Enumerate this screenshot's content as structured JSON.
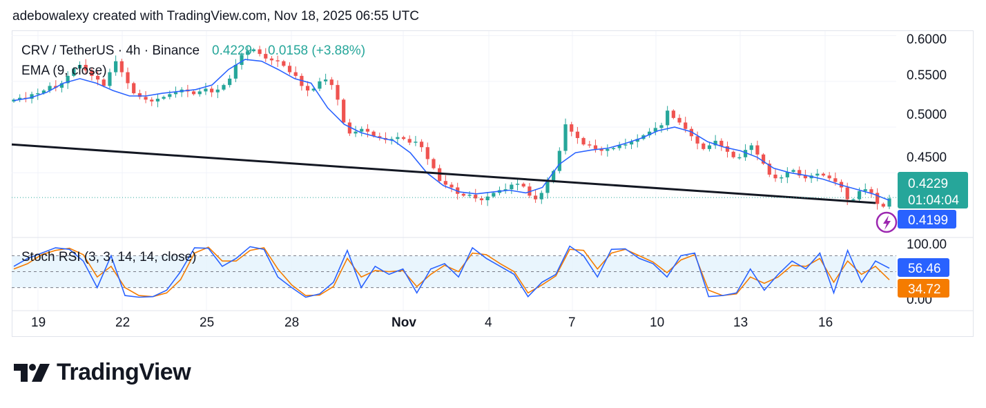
{
  "header": {
    "attribution": "adebowalexy created with TradingView.com, Nov 18, 2025 06:55 UTC"
  },
  "legend": {
    "symbol": "CRV / TetherUS · 4h · Binance",
    "price": "0.4229",
    "change": "0.0158 (+3.88%)",
    "ema_label": "EMA (9, close)"
  },
  "price_axis": {
    "ticks": [
      "0.6000",
      "0.5500",
      "0.5000",
      "0.4500"
    ],
    "last_price": "0.4229",
    "countdown": "01:04:04",
    "ema_value": "0.4199"
  },
  "rsi": {
    "label": "Stoch RSI (3, 3, 14, 14, close)",
    "ticks": [
      "100.00",
      "0.00"
    ],
    "k_value": "56.46",
    "d_value": "34.72"
  },
  "time_axis": {
    "labels": [
      "19",
      "22",
      "25",
      "28",
      "Nov",
      "4",
      "7",
      "10",
      "13",
      "16"
    ]
  },
  "logo": {
    "text": "TradingView"
  },
  "colors": {
    "up": "#26a69a",
    "down": "#ef5350",
    "ema": "#2962ff",
    "trendline": "#131722",
    "k_line": "#2962ff",
    "d_line": "#f57c00",
    "rsi_band": "#e3f2fd"
  },
  "chart_data": {
    "type": "candlestick",
    "title": "CRV / TetherUS · 4h · Binance",
    "ylim": [
      0.38,
      0.605
    ],
    "close_path": [
      0.53,
      0.532,
      0.531,
      0.536,
      0.537,
      0.54,
      0.545,
      0.543,
      0.548,
      0.556,
      0.564,
      0.568,
      0.562,
      0.556,
      0.552,
      0.545,
      0.56,
      0.572,
      0.56,
      0.548,
      0.537,
      0.533,
      0.53,
      0.528,
      0.531,
      0.533,
      0.536,
      0.538,
      0.541,
      0.539,
      0.536,
      0.539,
      0.542,
      0.538,
      0.541,
      0.546,
      0.553,
      0.568,
      0.579,
      0.583,
      0.585,
      0.58,
      0.575,
      0.573,
      0.572,
      0.567,
      0.56,
      0.556,
      0.545,
      0.54,
      0.542,
      0.55,
      0.552,
      0.546,
      0.53,
      0.505,
      0.493,
      0.495,
      0.498,
      0.495,
      0.49,
      0.488,
      0.486,
      0.487,
      0.489,
      0.487,
      0.483,
      0.484,
      0.478,
      0.465,
      0.455,
      0.441,
      0.437,
      0.434,
      0.427,
      0.425,
      0.426,
      0.422,
      0.42,
      0.424,
      0.428,
      0.431,
      0.432,
      0.437,
      0.438,
      0.435,
      0.425,
      0.421,
      0.428,
      0.44,
      0.452,
      0.474,
      0.503,
      0.495,
      0.488,
      0.481,
      0.48,
      0.476,
      0.474,
      0.476,
      0.477,
      0.48,
      0.481,
      0.484,
      0.487,
      0.491,
      0.495,
      0.499,
      0.502,
      0.518,
      0.51,
      0.505,
      0.498,
      0.49,
      0.482,
      0.476,
      0.48,
      0.485,
      0.479,
      0.473,
      0.467,
      0.467,
      0.475,
      0.48,
      0.47,
      0.46,
      0.448,
      0.444,
      0.445,
      0.451,
      0.453,
      0.447,
      0.444,
      0.447,
      0.449,
      0.447,
      0.444,
      0.44,
      0.434,
      0.421,
      0.421,
      0.43,
      0.432,
      0.428,
      0.416,
      0.413,
      0.422
    ],
    "ema": {
      "label": "EMA (9, close)",
      "values": [
        0.529,
        0.532,
        0.538,
        0.548,
        0.553,
        0.548,
        0.54,
        0.534,
        0.534,
        0.537,
        0.539,
        0.541,
        0.546,
        0.563,
        0.574,
        0.572,
        0.563,
        0.553,
        0.548,
        0.521,
        0.503,
        0.494,
        0.489,
        0.485,
        0.472,
        0.45,
        0.436,
        0.429,
        0.427,
        0.429,
        0.431,
        0.428,
        0.434,
        0.459,
        0.472,
        0.475,
        0.477,
        0.482,
        0.488,
        0.496,
        0.5,
        0.495,
        0.484,
        0.478,
        0.474,
        0.467,
        0.455,
        0.45,
        0.447,
        0.443,
        0.437,
        0.432,
        0.427,
        0.4199
      ]
    },
    "trendline": {
      "from": [
        0,
        0.481
      ],
      "to": [
        1,
        0.417
      ]
    },
    "stoch_rsi": {
      "label": "Stoch RSI (3, 3, 14, 14, close)",
      "ylim": [
        0,
        100
      ],
      "bands": [
        80,
        20
      ],
      "k": [
        60,
        75,
        85,
        95,
        92,
        70,
        20,
        80,
        5,
        2,
        3,
        15,
        50,
        95,
        94,
        60,
        75,
        97,
        92,
        40,
        20,
        2,
        8,
        30,
        90,
        20,
        60,
        45,
        55,
        10,
        55,
        65,
        40,
        95,
        75,
        60,
        45,
        3,
        30,
        45,
        98,
        80,
        40,
        92,
        93,
        75,
        65,
        40,
        80,
        85,
        3,
        5,
        10,
        55,
        15,
        45,
        70,
        55,
        85,
        10,
        90,
        30,
        70,
        56.46
      ],
      "d": [
        55,
        65,
        82,
        90,
        94,
        82,
        40,
        60,
        20,
        5,
        3,
        10,
        35,
        85,
        96,
        70,
        70,
        90,
        95,
        55,
        25,
        5,
        6,
        22,
        75,
        40,
        52,
        50,
        52,
        22,
        45,
        62,
        50,
        85,
        82,
        65,
        50,
        10,
        25,
        42,
        92,
        90,
        55,
        85,
        92,
        80,
        68,
        48,
        72,
        82,
        15,
        5,
        8,
        40,
        28,
        40,
        62,
        60,
        75,
        30,
        70,
        45,
        60,
        34.72
      ]
    }
  }
}
